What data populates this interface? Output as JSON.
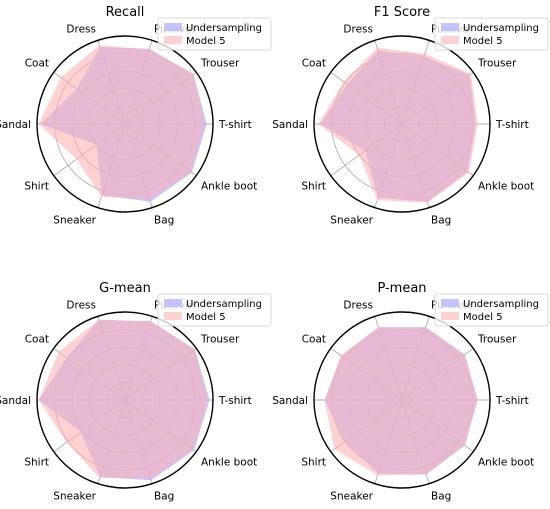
{
  "chart_data": [
    {
      "type": "radar",
      "title": "Recall",
      "categories": [
        "T-shirt",
        "Trouser",
        "Pullover",
        "Dress",
        "Coat",
        "Sandal",
        "Shirt",
        "Sneaker",
        "Bag",
        "Ankle boot"
      ],
      "rlim": [
        0,
        1
      ],
      "grid": true,
      "legend": "top-right",
      "series": [
        {
          "name": "Undersampling",
          "values": [
            0.93,
            0.96,
            0.9,
            0.92,
            0.68,
            0.96,
            0.4,
            0.85,
            0.93,
            0.94
          ],
          "color": "#b3b3ff"
        },
        {
          "name": "Model 5",
          "values": [
            0.9,
            0.97,
            0.89,
            0.94,
            0.9,
            0.98,
            0.68,
            0.87,
            0.9,
            0.93
          ],
          "color": "#ffb3b3"
        }
      ]
    },
    {
      "type": "radar",
      "title": "F1 Score",
      "categories": [
        "T-shirt",
        "Trouser",
        "Pullover",
        "Dress",
        "Coat",
        "Sandal",
        "Shirt",
        "Sneaker",
        "Bag",
        "Ankle boot"
      ],
      "rlim": [
        0,
        1
      ],
      "grid": true,
      "legend": "top-right",
      "series": [
        {
          "name": "Undersampling",
          "values": [
            0.84,
            0.95,
            0.8,
            0.88,
            0.77,
            0.93,
            0.52,
            0.88,
            0.93,
            0.92
          ],
          "color": "#b3b3ff"
        },
        {
          "name": "Model 5",
          "values": [
            0.86,
            0.97,
            0.84,
            0.91,
            0.82,
            0.95,
            0.6,
            0.91,
            0.94,
            0.94
          ],
          "color": "#ffb3b3"
        }
      ]
    },
    {
      "type": "radar",
      "title": "G-mean",
      "categories": [
        "T-shirt",
        "Trouser",
        "Pullover",
        "Dress",
        "Coat",
        "Sandal",
        "Shirt",
        "Sneaker",
        "Bag",
        "Ankle boot"
      ],
      "rlim": [
        0,
        1
      ],
      "grid": true,
      "legend": "top-right",
      "series": [
        {
          "name": "Undersampling",
          "values": [
            0.96,
            0.98,
            0.94,
            0.96,
            0.82,
            0.98,
            0.62,
            0.92,
            0.96,
            0.97
          ],
          "color": "#b3b3ff"
        },
        {
          "name": "Model 5",
          "values": [
            0.94,
            0.98,
            0.94,
            0.96,
            0.93,
            0.98,
            0.82,
            0.93,
            0.94,
            0.96
          ],
          "color": "#ffb3b3"
        }
      ]
    },
    {
      "type": "radar",
      "title": "P-mean",
      "categories": [
        "T-shirt",
        "Trouser",
        "Pullover",
        "Dress",
        "Coat",
        "Sandal",
        "Shirt",
        "Sneaker",
        "Bag",
        "Ankle boot"
      ],
      "rlim": [
        0,
        1
      ],
      "grid": true,
      "legend": "top-right",
      "series": [
        {
          "name": "Undersampling",
          "values": [
            0.86,
            0.88,
            0.87,
            0.87,
            0.85,
            0.88,
            0.8,
            0.88,
            0.89,
            0.88
          ],
          "color": "#b3b3ff"
        },
        {
          "name": "Model 5",
          "values": [
            0.86,
            0.88,
            0.87,
            0.87,
            0.86,
            0.88,
            0.95,
            0.9,
            0.89,
            0.88
          ],
          "color": "#ffb3b3"
        }
      ]
    }
  ]
}
